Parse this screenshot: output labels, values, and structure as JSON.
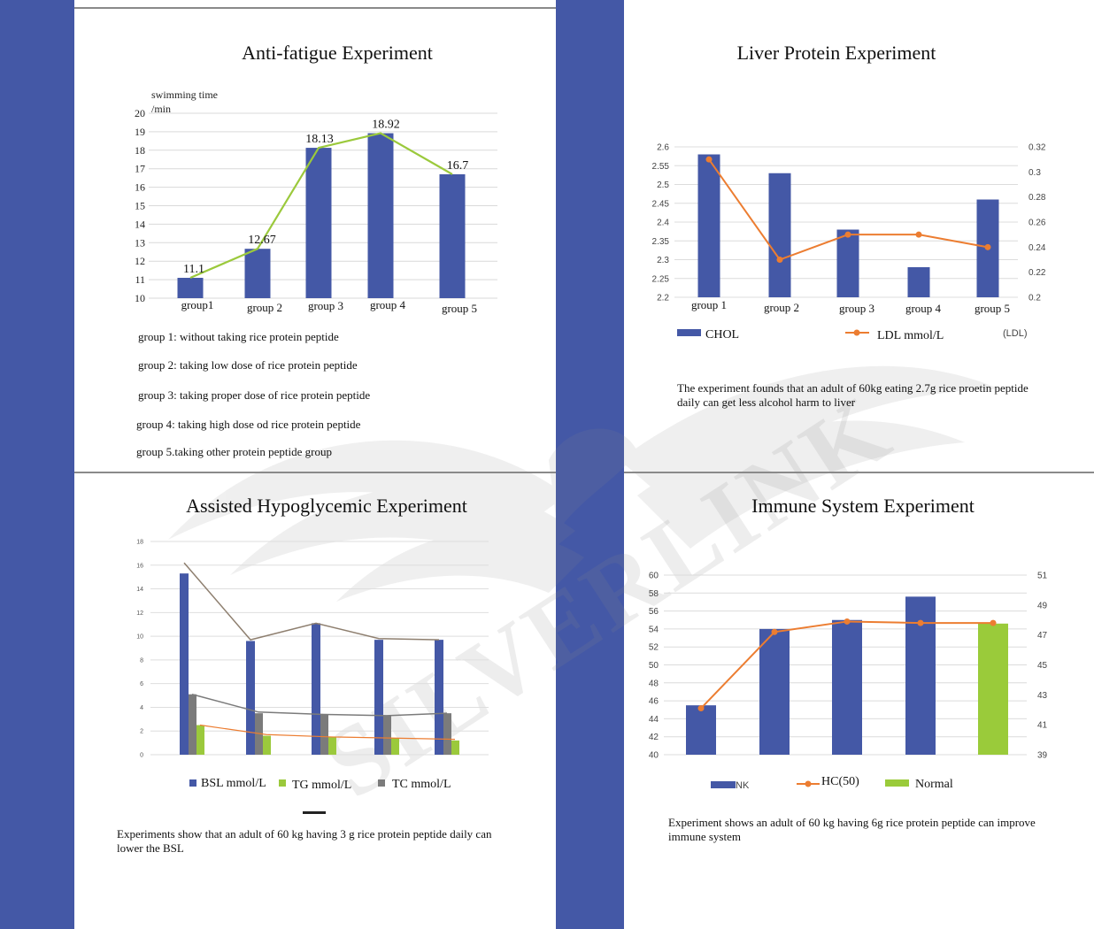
{
  "colors": {
    "band": "#4458a6",
    "bar": "#4458a6",
    "green": "#9bc93c",
    "orange": "#ec7d31",
    "gray": "#7b7b7b",
    "tan": "#8e7f6f",
    "normal": "#9acb3a"
  },
  "watermark": {
    "text": "SILVERLINK",
    "icon": "wing-logo-icon"
  },
  "panels": {
    "fatigue": {
      "title": "Anti-fatigue Experiment",
      "notes": [
        "group 1: without taking rice protein peptide",
        "group 2: taking low dose of rice protein peptide",
        "group 3: taking proper dose of rice protein peptide",
        "group 4: taking high dose od rice protein peptide",
        "group 5.taking other protein peptide group"
      ]
    },
    "liver": {
      "title": "Liver Protein Experiment",
      "note": "The experiment founds that an adult of 60kg eating 2.7g rice proetin peptide daily can get less alcohol harm to liver"
    },
    "glucose": {
      "title": "Assisted Hypoglycemic Experiment",
      "note": "Experiments show that an adult of 60 kg having 3 g rice protein peptide daily can lower the BSL"
    },
    "immune": {
      "title": "Immune System Experiment",
      "note": "Experiment shows an adult of 60 kg having 6g rice protein peptide can improve immune system"
    }
  },
  "chart_data": [
    {
      "type": "bar",
      "title": "Anti-fatigue Experiment",
      "ylabel": "swimming time /min",
      "categories": [
        "group1",
        "group 2",
        "group 3",
        "group 4",
        "group 5"
      ],
      "series": [
        {
          "values": [
            11.1,
            12.67,
            18.13,
            18.92,
            16.7
          ]
        }
      ],
      "line_values": [
        11.1,
        12.67,
        18.13,
        18.92,
        16.7
      ],
      "data_labels": [
        "11.1",
        "12.67",
        "18.13",
        "18.92",
        "16.7"
      ],
      "ylim": [
        10,
        20
      ],
      "yticks": [
        "10",
        "11",
        "12",
        "13",
        "14",
        "15",
        "16",
        "17",
        "18",
        "19",
        "20"
      ],
      "grid": true
    },
    {
      "type": "bar",
      "title": "Liver Protein Experiment",
      "categories": [
        "group 1",
        "group 2",
        "group 3",
        "group 4",
        "group 5"
      ],
      "series": [
        {
          "name": "CHOL",
          "type": "bar",
          "values": [
            2.58,
            2.53,
            2.38,
            2.28,
            2.46
          ]
        },
        {
          "name": "LDL mmol/L",
          "type": "line",
          "axis": "right",
          "values": [
            0.31,
            0.23,
            0.25,
            0.25,
            0.24
          ]
        }
      ],
      "ylim": [
        2.2,
        2.6
      ],
      "yticks": [
        "2.2",
        "2.25",
        "2.3",
        "2.35",
        "2.4",
        "2.45",
        "2.5",
        "2.55",
        "2.6"
      ],
      "y2lim": [
        0.2,
        0.32
      ],
      "y2ticks": [
        "0.2",
        "0.22",
        "0.24",
        "0.26",
        "0.28",
        "0.3",
        "0.32"
      ],
      "y2label": "(LDL)",
      "legend": "bottom",
      "grid": true
    },
    {
      "type": "bar",
      "title": "Assisted Hypoglycemic Experiment",
      "categories": [
        "",
        "",
        "",
        "",
        ""
      ],
      "series": [
        {
          "name": "BSL mmol/L",
          "values": [
            15.3,
            9.6,
            11.1,
            9.7,
            9.7
          ]
        },
        {
          "name": "TC mmol/L",
          "values": [
            5.1,
            3.5,
            3.4,
            3.3,
            3.5
          ]
        },
        {
          "name": "TG mmol/L",
          "values": [
            2.5,
            1.6,
            1.5,
            1.4,
            1.2
          ]
        }
      ],
      "line_series": [
        [
          16.2,
          9.7,
          11.1,
          9.8,
          9.7
        ],
        [
          5.1,
          3.6,
          3.4,
          3.3,
          3.5
        ],
        [
          2.5,
          1.7,
          1.5,
          1.4,
          1.3
        ]
      ],
      "ylim": [
        0,
        18
      ],
      "yticks": [
        "0",
        "2",
        "4",
        "6",
        "8",
        "10",
        "12",
        "14",
        "16",
        "18"
      ],
      "legend": "bottom",
      "grid": true
    },
    {
      "type": "bar",
      "title": "Immune System Experiment",
      "categories": [
        "",
        "",
        "",
        "",
        ""
      ],
      "series": [
        {
          "name": "NK",
          "type": "bar",
          "values": [
            45.5,
            54,
            55,
            57.6,
            null
          ]
        },
        {
          "name": "Normal",
          "type": "bar",
          "values": [
            null,
            null,
            null,
            null,
            54.6
          ]
        },
        {
          "name": "HC(50)",
          "type": "line",
          "axis": "right",
          "values": [
            42.1,
            47.2,
            47.9,
            47.8,
            47.8
          ]
        }
      ],
      "ylim": [
        40,
        60
      ],
      "yticks": [
        "40",
        "42",
        "44",
        "46",
        "48",
        "50",
        "52",
        "54",
        "56",
        "58",
        "60"
      ],
      "y2lim": [
        39,
        51
      ],
      "y2ticks": [
        "39",
        "41",
        "43",
        "45",
        "47",
        "49",
        "51"
      ],
      "legend": "bottom",
      "grid": true
    }
  ]
}
